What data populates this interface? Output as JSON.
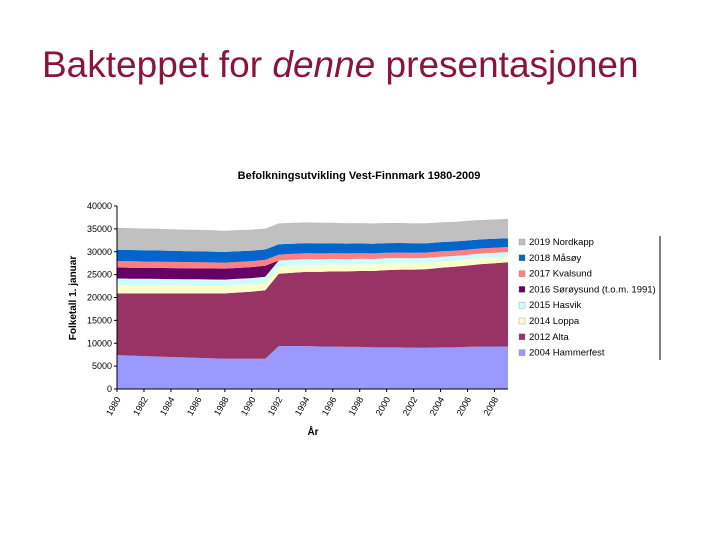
{
  "slide": {
    "title_pre": "Bakteppet for ",
    "title_em": "denne",
    "title_post": " presentasjonen"
  },
  "colors": {
    "title": "#8b1538"
  },
  "chart_data": {
    "type": "area",
    "stacked": true,
    "title": "Befolkningsutvikling Vest-Finnmark 1980-2009",
    "xlabel": "År",
    "ylabel": "Folketall 1. januar",
    "ylim": [
      0,
      40000
    ],
    "yticks": [
      0,
      5000,
      10000,
      15000,
      20000,
      25000,
      30000,
      35000,
      40000
    ],
    "xtick_labels": [
      "1980",
      "1982",
      "1984",
      "1986",
      "1988",
      "1990",
      "1992",
      "1994",
      "1996",
      "1998",
      "2000",
      "2002",
      "2004",
      "2006",
      "2008"
    ],
    "x": [
      1980,
      1981,
      1982,
      1983,
      1984,
      1985,
      1986,
      1987,
      1988,
      1989,
      1990,
      1991,
      1992,
      1993,
      1994,
      1995,
      1996,
      1997,
      1998,
      1999,
      2000,
      2001,
      2002,
      2003,
      2004,
      2005,
      2006,
      2007,
      2008,
      2009
    ],
    "grid": false,
    "legend_position": "right",
    "series": [
      {
        "name": "2004 Hammerfest",
        "color": "#9999ff",
        "values": [
          7400,
          7300,
          7200,
          7100,
          7000,
          6900,
          6800,
          6700,
          6600,
          6600,
          6600,
          6600,
          9400,
          9400,
          9400,
          9300,
          9300,
          9200,
          9200,
          9100,
          9100,
          9100,
          9000,
          9000,
          9100,
          9100,
          9200,
          9300,
          9300,
          9300
        ]
      },
      {
        "name": "2012 Alta",
        "color": "#993366",
        "values": [
          13500,
          13600,
          13700,
          13800,
          13900,
          14000,
          14100,
          14200,
          14300,
          14500,
          14700,
          15000,
          15800,
          16000,
          16200,
          16300,
          16400,
          16500,
          16600,
          16700,
          16900,
          17000,
          17100,
          17200,
          17400,
          17600,
          17800,
          18000,
          18200,
          18400
        ]
      },
      {
        "name": "2014 Loppa",
        "color": "#ffffcc",
        "values": [
          1800,
          1780,
          1760,
          1740,
          1720,
          1700,
          1680,
          1660,
          1640,
          1620,
          1600,
          1580,
          1560,
          1540,
          1520,
          1500,
          1480,
          1460,
          1440,
          1420,
          1400,
          1380,
          1360,
          1340,
          1320,
          1300,
          1280,
          1260,
          1240,
          1220
        ]
      },
      {
        "name": "2015 Hasvik",
        "color": "#ccffff",
        "values": [
          1450,
          1440,
          1430,
          1420,
          1410,
          1400,
          1390,
          1380,
          1370,
          1360,
          1350,
          1340,
          1330,
          1320,
          1300,
          1280,
          1260,
          1240,
          1220,
          1200,
          1180,
          1160,
          1140,
          1120,
          1100,
          1080,
          1060,
          1040,
          1020,
          1000
        ]
      },
      {
        "name": "2016 Sørøysund (t.o.m. 1991)",
        "color": "#660066",
        "values": [
          2400,
          2400,
          2400,
          2400,
          2400,
          2400,
          2400,
          2400,
          2400,
          2400,
          2400,
          2400,
          0,
          0,
          0,
          0,
          0,
          0,
          0,
          0,
          0,
          0,
          0,
          0,
          0,
          0,
          0,
          0,
          0,
          0
        ]
      },
      {
        "name": "2017 Kvalsund",
        "color": "#ff8080",
        "values": [
          1400,
          1390,
          1380,
          1370,
          1360,
          1350,
          1340,
          1330,
          1320,
          1310,
          1300,
          1290,
          1280,
          1270,
          1260,
          1250,
          1240,
          1230,
          1220,
          1210,
          1200,
          1190,
          1180,
          1170,
          1160,
          1150,
          1140,
          1130,
          1120,
          1110
        ]
      },
      {
        "name": "2018 Måsøy",
        "color": "#0066cc",
        "values": [
          2500,
          2480,
          2460,
          2440,
          2420,
          2400,
          2380,
          2360,
          2340,
          2320,
          2300,
          2280,
          2260,
          2240,
          2220,
          2200,
          2180,
          2160,
          2140,
          2120,
          2100,
          2080,
          2060,
          2040,
          2020,
          2000,
          1980,
          1960,
          1940,
          1920
        ]
      },
      {
        "name": "2019 Nordkapp",
        "color": "#c0c0c0",
        "values": [
          4800,
          4780,
          4760,
          4740,
          4720,
          4700,
          4680,
          4660,
          4640,
          4620,
          4600,
          4580,
          4560,
          4540,
          4520,
          4500,
          4480,
          4460,
          4440,
          4420,
          4400,
          4380,
          4360,
          4340,
          4320,
          4300,
          4280,
          4260,
          4240,
          4220
        ]
      }
    ],
    "legend_order": [
      "2019 Nordkapp",
      "2018 Måsøy",
      "2017 Kvalsund",
      "2016 Sørøysund (t.o.m. 1991)",
      "2015 Hasvik",
      "2014 Loppa",
      "2012 Alta",
      "2004 Hammerfest"
    ]
  }
}
